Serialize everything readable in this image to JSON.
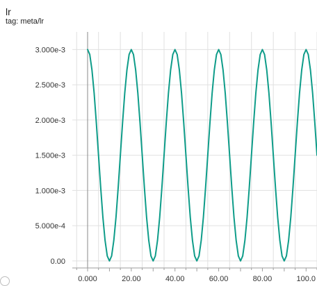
{
  "card": {
    "title": "lr",
    "tag": "tag: meta/lr"
  },
  "colors": {
    "series": "#0e9c89",
    "grid": "#e0e0e0",
    "axis": "#9e9e9e",
    "zero_line": "#8a8a8a"
  },
  "chart_data": {
    "type": "line",
    "title": "lr",
    "xlabel": "",
    "ylabel": "",
    "xlim": [
      -7,
      105
    ],
    "ylim": [
      -0.0001,
      0.00325
    ],
    "x_ticks": [
      0,
      20,
      40,
      60,
      80,
      100
    ],
    "x_tick_labels": [
      "0.000",
      "20.00",
      "40.00",
      "60.00",
      "80.00",
      "100.0"
    ],
    "y_ticks": [
      0,
      0.0005,
      0.001,
      0.0015,
      0.002,
      0.0025,
      0.003
    ],
    "y_tick_labels": [
      "0.00",
      "5.000e-4",
      "1.000e-3",
      "1.500e-3",
      "2.000e-3",
      "2.500e-3",
      "3.000e-3"
    ],
    "grid": true,
    "series": [
      {
        "x": [
          0,
          1,
          2,
          3,
          4,
          5,
          6,
          7,
          8,
          9,
          10,
          11,
          12,
          13,
          14,
          15,
          16,
          17,
          18,
          19,
          20,
          21,
          22,
          23,
          24,
          25,
          26,
          27,
          28,
          29,
          30,
          31,
          32,
          33,
          34,
          35,
          36,
          37,
          38,
          39,
          40,
          41,
          42,
          43,
          44,
          45,
          46,
          47,
          48,
          49,
          50,
          51,
          52,
          53,
          54,
          55,
          56,
          57,
          58,
          59,
          60,
          61,
          62,
          63,
          64,
          65,
          66,
          67,
          68,
          69,
          70,
          71,
          72,
          73,
          74,
          75,
          76,
          77,
          78,
          79,
          80,
          81,
          82,
          83,
          84,
          85,
          86,
          87,
          88,
          89,
          90,
          91,
          92,
          93,
          94,
          95,
          96,
          97,
          98,
          99,
          100,
          101,
          102,
          103,
          104,
          105
        ],
        "y": [
          0.003,
          0.00293,
          0.00271,
          0.00238,
          0.00196,
          0.0015,
          0.00104,
          0.00062,
          0.00029,
          7e-05,
          0,
          7e-05,
          0.00029,
          0.00062,
          0.00104,
          0.0015,
          0.00196,
          0.00238,
          0.00271,
          0.00293,
          0.003,
          0.00293,
          0.00271,
          0.00238,
          0.00196,
          0.0015,
          0.00104,
          0.00062,
          0.00029,
          7e-05,
          0,
          7e-05,
          0.00029,
          0.00062,
          0.00104,
          0.0015,
          0.00196,
          0.00238,
          0.00271,
          0.00293,
          0.003,
          0.00293,
          0.00271,
          0.00238,
          0.00196,
          0.0015,
          0.00104,
          0.00062,
          0.00029,
          7e-05,
          0,
          7e-05,
          0.00029,
          0.00062,
          0.00104,
          0.0015,
          0.00196,
          0.00238,
          0.00271,
          0.00293,
          0.003,
          0.00293,
          0.00271,
          0.00238,
          0.00196,
          0.0015,
          0.00104,
          0.00062,
          0.00029,
          7e-05,
          0,
          7e-05,
          0.00029,
          0.00062,
          0.00104,
          0.0015,
          0.00196,
          0.00238,
          0.00271,
          0.00293,
          0.003,
          0.00293,
          0.00271,
          0.00238,
          0.00196,
          0.0015,
          0.00104,
          0.00062,
          0.00029,
          7e-05,
          0,
          7e-05,
          0.00029,
          0.00062,
          0.00104,
          0.0015,
          0.00196,
          0.00238,
          0.00271,
          0.00293,
          0.003,
          0.00293,
          0.00271,
          0.00238,
          0.00196,
          0.0015
        ]
      }
    ]
  }
}
